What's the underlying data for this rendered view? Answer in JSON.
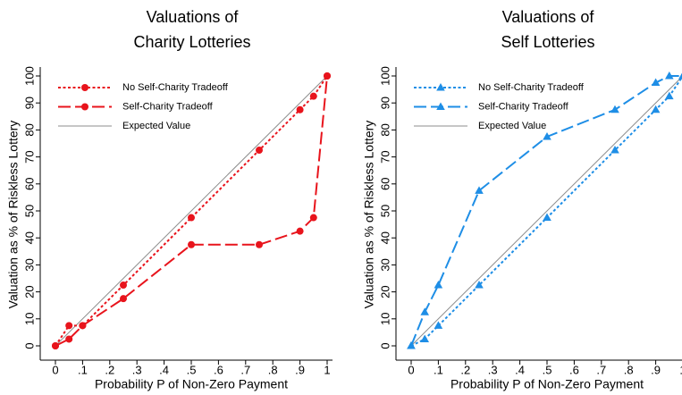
{
  "chart_data": [
    {
      "type": "line",
      "title": [
        "Valuations of",
        "Charity Lotteries"
      ],
      "x_label": "Probability P of Non-Zero Payment",
      "y_label": "Valuation as % of Riskless Lottery",
      "xlim": [
        0,
        1
      ],
      "ylim": [
        0,
        100
      ],
      "xticks": [
        0,
        {
          "value": 0.1,
          "label": ".1"
        },
        {
          "value": 0.2,
          "label": ".2"
        },
        {
          "value": 0.3,
          "label": ".3"
        },
        {
          "value": 0.4,
          "label": ".4"
        },
        {
          "value": 0.5,
          "label": ".5"
        },
        {
          "value": 0.6,
          "label": ".6"
        },
        {
          "value": 0.7,
          "label": ".7"
        },
        {
          "value": 0.8,
          "label": ".8"
        },
        {
          "value": 0.9,
          "label": ".9"
        },
        1
      ],
      "yticks": [
        0,
        10,
        20,
        30,
        40,
        50,
        60,
        70,
        80,
        90,
        100
      ],
      "legend": "top-left",
      "series": [
        {
          "name": "No Self-Charity Tradeoff",
          "color": "#e8141c",
          "dash": "dot",
          "marker": "circle",
          "x": [
            0,
            0.05,
            0.1,
            0.25,
            0.5,
            0.75,
            0.9,
            0.95,
            1
          ],
          "values": [
            0,
            7.5,
            7.5,
            22.5,
            47.5,
            72.5,
            87.5,
            92.5,
            100
          ]
        },
        {
          "name": "Self-Charity Tradeoff",
          "color": "#e8141c",
          "dash": "dash",
          "marker": "circle",
          "x": [
            0,
            0.05,
            0.1,
            0.25,
            0.5,
            0.75,
            0.9,
            0.95,
            1
          ],
          "values": [
            0,
            2.5,
            7.5,
            17.5,
            37.5,
            37.5,
            42.5,
            47.5,
            100
          ]
        },
        {
          "name": "Expected Value",
          "color": "#8c8c8c",
          "dash": "solid",
          "marker": "none",
          "x": [
            0,
            1
          ],
          "values": [
            0,
            100
          ]
        }
      ]
    },
    {
      "type": "line",
      "title": [
        "Valuations of",
        "Self Lotteries"
      ],
      "x_label": "Probability P of Non-Zero Payment",
      "y_label": "Valuation as % of Riskless Lottery",
      "xlim": [
        0,
        1
      ],
      "ylim": [
        0,
        100
      ],
      "xticks": [
        0,
        {
          "value": 0.1,
          "label": ".1"
        },
        {
          "value": 0.2,
          "label": ".2"
        },
        {
          "value": 0.3,
          "label": ".3"
        },
        {
          "value": 0.4,
          "label": ".4"
        },
        {
          "value": 0.5,
          "label": ".5"
        },
        {
          "value": 0.6,
          "label": ".6"
        },
        {
          "value": 0.7,
          "label": ".7"
        },
        {
          "value": 0.8,
          "label": ".8"
        },
        {
          "value": 0.9,
          "label": ".9"
        },
        1
      ],
      "yticks": [
        0,
        10,
        20,
        30,
        40,
        50,
        60,
        70,
        80,
        90,
        100
      ],
      "legend": "top-left",
      "series": [
        {
          "name": "No Self-Charity Tradeoff",
          "color": "#1e8ee6",
          "dash": "dot",
          "marker": "triangle",
          "x": [
            0,
            0.05,
            0.1,
            0.25,
            0.5,
            0.75,
            0.9,
            0.95,
            1
          ],
          "values": [
            0,
            2.5,
            7.5,
            22.5,
            47.5,
            72.5,
            87.5,
            92.5,
            100
          ]
        },
        {
          "name": "Self-Charity Tradeoff",
          "color": "#1e8ee6",
          "dash": "dash",
          "marker": "triangle",
          "x": [
            0,
            0.05,
            0.1,
            0.25,
            0.5,
            0.75,
            0.9,
            0.95,
            1
          ],
          "values": [
            0,
            12.5,
            22.5,
            57.5,
            77.5,
            87.5,
            97.5,
            100,
            100
          ]
        },
        {
          "name": "Expected Value",
          "color": "#8c8c8c",
          "dash": "solid",
          "marker": "none",
          "x": [
            0,
            1
          ],
          "values": [
            0,
            100
          ]
        }
      ]
    }
  ]
}
